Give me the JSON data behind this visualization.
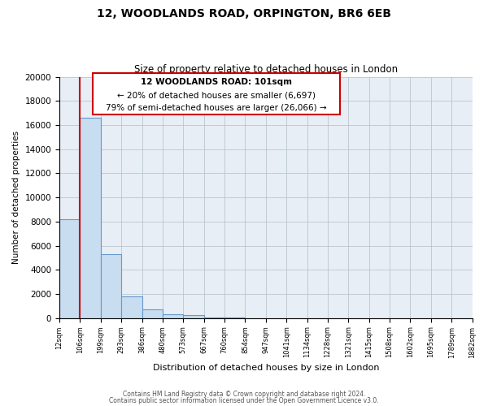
{
  "title": "12, WOODLANDS ROAD, ORPINGTON, BR6 6EB",
  "subtitle": "Size of property relative to detached houses in London",
  "xlabel": "Distribution of detached houses by size in London",
  "ylabel": "Number of detached properties",
  "bar_values": [
    8200,
    16600,
    5300,
    1800,
    750,
    300,
    250,
    80,
    40,
    10,
    5,
    3,
    2,
    1,
    1,
    0,
    0,
    0,
    0,
    0
  ],
  "bin_labels": [
    "12sqm",
    "106sqm",
    "199sqm",
    "293sqm",
    "386sqm",
    "480sqm",
    "573sqm",
    "667sqm",
    "760sqm",
    "854sqm",
    "947sqm",
    "1041sqm",
    "1134sqm",
    "1228sqm",
    "1321sqm",
    "1415sqm",
    "1508sqm",
    "1602sqm",
    "1695sqm",
    "1789sqm",
    "1882sqm"
  ],
  "bar_color": "#c8ddf0",
  "bar_edge_color": "#6699cc",
  "red_line_x": 1.0,
  "annotation_text1": "12 WOODLANDS ROAD: 101sqm",
  "annotation_text2": "← 20% of detached houses are smaller (6,697)",
  "annotation_text3": "79% of semi-detached houses are larger (26,066) →",
  "ylim": [
    0,
    20000
  ],
  "yticks": [
    0,
    2000,
    4000,
    6000,
    8000,
    10000,
    12000,
    14000,
    16000,
    18000,
    20000
  ],
  "background_color": "#e8eef5",
  "footer1": "Contains HM Land Registry data © Crown copyright and database right 2024.",
  "footer2": "Contains public sector information licensed under the Open Government Licence v3.0."
}
